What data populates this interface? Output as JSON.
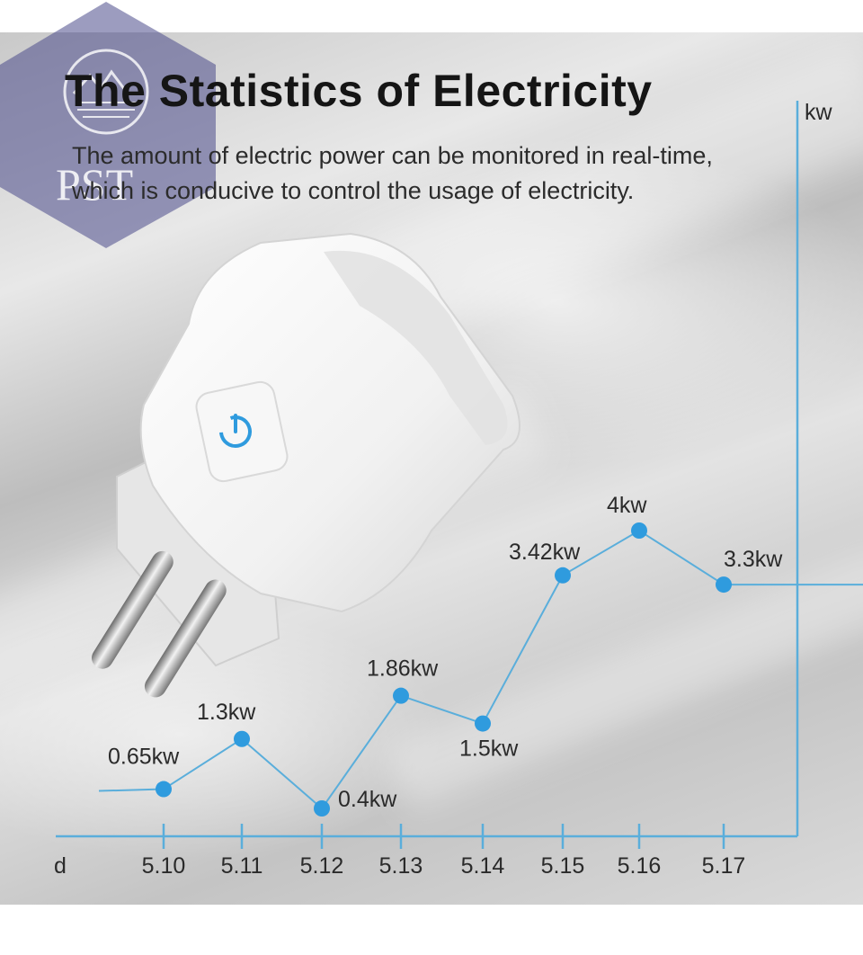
{
  "header": {
    "title": "The Statistics of Electricity",
    "subtitle_line1": "The amount of electric power can be monitored in real-time,",
    "subtitle_line2": "which is conducive to control the usage of electricity."
  },
  "watermark": {
    "text": "PST"
  },
  "colors": {
    "line": "#5aaedb",
    "dot": "#2f9bde",
    "axis": "#5aaedb",
    "hexagon": "#4a4a8a",
    "title": "#151515"
  },
  "chart_data": {
    "type": "line",
    "title": "The Statistics of Electricity",
    "xlabel": "d",
    "ylabel": "kw",
    "categories": [
      "5.10",
      "5.11",
      "5.12",
      "5.13",
      "5.14",
      "5.15",
      "5.16",
      "5.17"
    ],
    "series": [
      {
        "values": [
          0.65,
          1.3,
          0.4,
          1.86,
          1.5,
          3.42,
          4,
          3.3
        ],
        "labels": [
          "0.65kw",
          "1.3kw",
          "0.4kw",
          "1.86kw",
          "1.5kw",
          "3.42kw",
          "4kw",
          "3.3kw"
        ]
      }
    ],
    "grid": false,
    "legend": "none"
  }
}
